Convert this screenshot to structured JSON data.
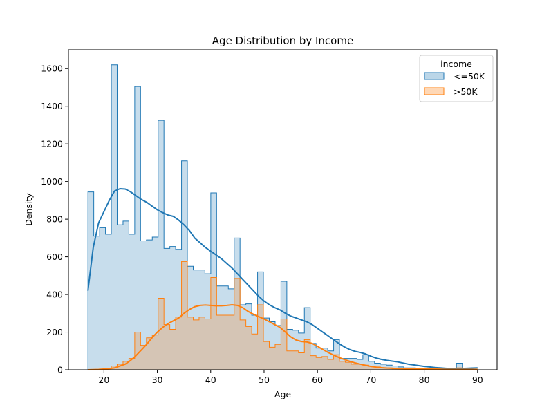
{
  "chart_data": {
    "type": "histogram",
    "title": "Age Distribution by Income",
    "xlabel": "Age",
    "ylabel": "Density",
    "xlim": [
      13.35,
      93.65
    ],
    "ylim": [
      0,
      1700
    ],
    "x_ticks": [
      20,
      30,
      40,
      50,
      60,
      70,
      80,
      90
    ],
    "y_ticks": [
      0,
      200,
      400,
      600,
      800,
      1000,
      1200,
      1400,
      1600
    ],
    "grid": false,
    "legend": {
      "title": "income",
      "placement": "top-right"
    },
    "bin_start": 17,
    "bin_width": 1.0959,
    "series": [
      {
        "name": "<=50K",
        "color": "#1f77b4",
        "fill": "#a6c6e1",
        "counts": [
          945,
          710,
          755,
          720,
          1620,
          770,
          790,
          720,
          1505,
          685,
          690,
          705,
          1325,
          645,
          655,
          640,
          1110,
          550,
          530,
          530,
          510,
          940,
          445,
          445,
          430,
          700,
          345,
          350,
          290,
          520,
          275,
          255,
          235,
          470,
          215,
          210,
          195,
          330,
          140,
          115,
          115,
          100,
          160,
          60,
          60,
          60,
          55,
          80,
          45,
          35,
          30,
          25,
          20,
          15,
          10,
          10,
          5,
          5,
          5,
          5,
          5,
          5,
          5,
          35
        ],
        "kde": [
          [
            17,
            420
          ],
          [
            18,
            650
          ],
          [
            19,
            780
          ],
          [
            20,
            840
          ],
          [
            21,
            900
          ],
          [
            22,
            950
          ],
          [
            23,
            962
          ],
          [
            24,
            960
          ],
          [
            25,
            945
          ],
          [
            26,
            925
          ],
          [
            27,
            905
          ],
          [
            28,
            890
          ],
          [
            29,
            870
          ],
          [
            30,
            850
          ],
          [
            31,
            835
          ],
          [
            32,
            822
          ],
          [
            33,
            815
          ],
          [
            34,
            795
          ],
          [
            35,
            770
          ],
          [
            36,
            740
          ],
          [
            37,
            700
          ],
          [
            38,
            675
          ],
          [
            39,
            650
          ],
          [
            40,
            630
          ],
          [
            41,
            610
          ],
          [
            42,
            590
          ],
          [
            43,
            565
          ],
          [
            44,
            540
          ],
          [
            45,
            510
          ],
          [
            46,
            480
          ],
          [
            47,
            450
          ],
          [
            48,
            420
          ],
          [
            49,
            390
          ],
          [
            50,
            365
          ],
          [
            51,
            345
          ],
          [
            52,
            330
          ],
          [
            53,
            318
          ],
          [
            54,
            300
          ],
          [
            55,
            285
          ],
          [
            56,
            275
          ],
          [
            57,
            265
          ],
          [
            58,
            255
          ],
          [
            59,
            240
          ],
          [
            60,
            220
          ],
          [
            61,
            200
          ],
          [
            62,
            180
          ],
          [
            63,
            160
          ],
          [
            64,
            140
          ],
          [
            65,
            122
          ],
          [
            66,
            108
          ],
          [
            67,
            98
          ],
          [
            68,
            92
          ],
          [
            69,
            84
          ],
          [
            70,
            72
          ],
          [
            71,
            62
          ],
          [
            72,
            55
          ],
          [
            73,
            50
          ],
          [
            74,
            46
          ],
          [
            75,
            42
          ],
          [
            76,
            36
          ],
          [
            77,
            30
          ],
          [
            78,
            26
          ],
          [
            79,
            22
          ],
          [
            80,
            18
          ],
          [
            81,
            15
          ],
          [
            82,
            12
          ],
          [
            83,
            10
          ],
          [
            84,
            8
          ],
          [
            85,
            6
          ],
          [
            86,
            6
          ],
          [
            87,
            7
          ],
          [
            88,
            8
          ],
          [
            89,
            9
          ],
          [
            90,
            10
          ]
        ]
      },
      {
        "name": ">50K",
        "color": "#ff7f0e",
        "fill": "#ffc58f",
        "counts": [
          0,
          0,
          0,
          5,
          20,
          30,
          45,
          60,
          200,
          130,
          170,
          185,
          380,
          240,
          215,
          280,
          575,
          280,
          265,
          280,
          270,
          490,
          290,
          290,
          290,
          485,
          265,
          230,
          190,
          345,
          150,
          120,
          135,
          270,
          100,
          100,
          90,
          160,
          75,
          65,
          70,
          55,
          80,
          45,
          40,
          30,
          30,
          25,
          20,
          15,
          10,
          10,
          5,
          5,
          5,
          5,
          5,
          5,
          5,
          5,
          5,
          5,
          5,
          10
        ],
        "kde": [
          [
            17,
            0
          ],
          [
            19,
            2
          ],
          [
            21,
            6
          ],
          [
            22,
            10
          ],
          [
            23,
            20
          ],
          [
            24,
            30
          ],
          [
            25,
            50
          ],
          [
            26,
            75
          ],
          [
            27,
            105
          ],
          [
            28,
            135
          ],
          [
            29,
            170
          ],
          [
            30,
            200
          ],
          [
            31,
            225
          ],
          [
            32,
            245
          ],
          [
            33,
            260
          ],
          [
            34,
            275
          ],
          [
            35,
            300
          ],
          [
            36,
            320
          ],
          [
            37,
            335
          ],
          [
            38,
            342
          ],
          [
            39,
            344
          ],
          [
            40,
            342
          ],
          [
            41,
            340
          ],
          [
            42,
            340
          ],
          [
            43,
            342
          ],
          [
            44,
            345
          ],
          [
            45,
            342
          ],
          [
            46,
            330
          ],
          [
            47,
            310
          ],
          [
            48,
            295
          ],
          [
            49,
            282
          ],
          [
            50,
            270
          ],
          [
            51,
            255
          ],
          [
            52,
            240
          ],
          [
            53,
            225
          ],
          [
            54,
            200
          ],
          [
            55,
            175
          ],
          [
            56,
            158
          ],
          [
            57,
            150
          ],
          [
            58,
            148
          ],
          [
            59,
            140
          ],
          [
            60,
            125
          ],
          [
            61,
            108
          ],
          [
            62,
            92
          ],
          [
            63,
            78
          ],
          [
            64,
            66
          ],
          [
            65,
            55
          ],
          [
            66,
            45
          ],
          [
            67,
            37
          ],
          [
            68,
            30
          ],
          [
            69,
            24
          ],
          [
            70,
            18
          ],
          [
            71,
            14
          ],
          [
            72,
            11
          ],
          [
            73,
            9
          ],
          [
            74,
            8
          ],
          [
            75,
            7
          ],
          [
            76,
            6
          ],
          [
            77,
            5
          ],
          [
            78,
            5
          ],
          [
            79,
            4
          ],
          [
            80,
            4
          ],
          [
            82,
            3
          ],
          [
            84,
            2
          ],
          [
            86,
            2
          ],
          [
            88,
            2
          ],
          [
            90,
            2
          ]
        ]
      }
    ]
  }
}
